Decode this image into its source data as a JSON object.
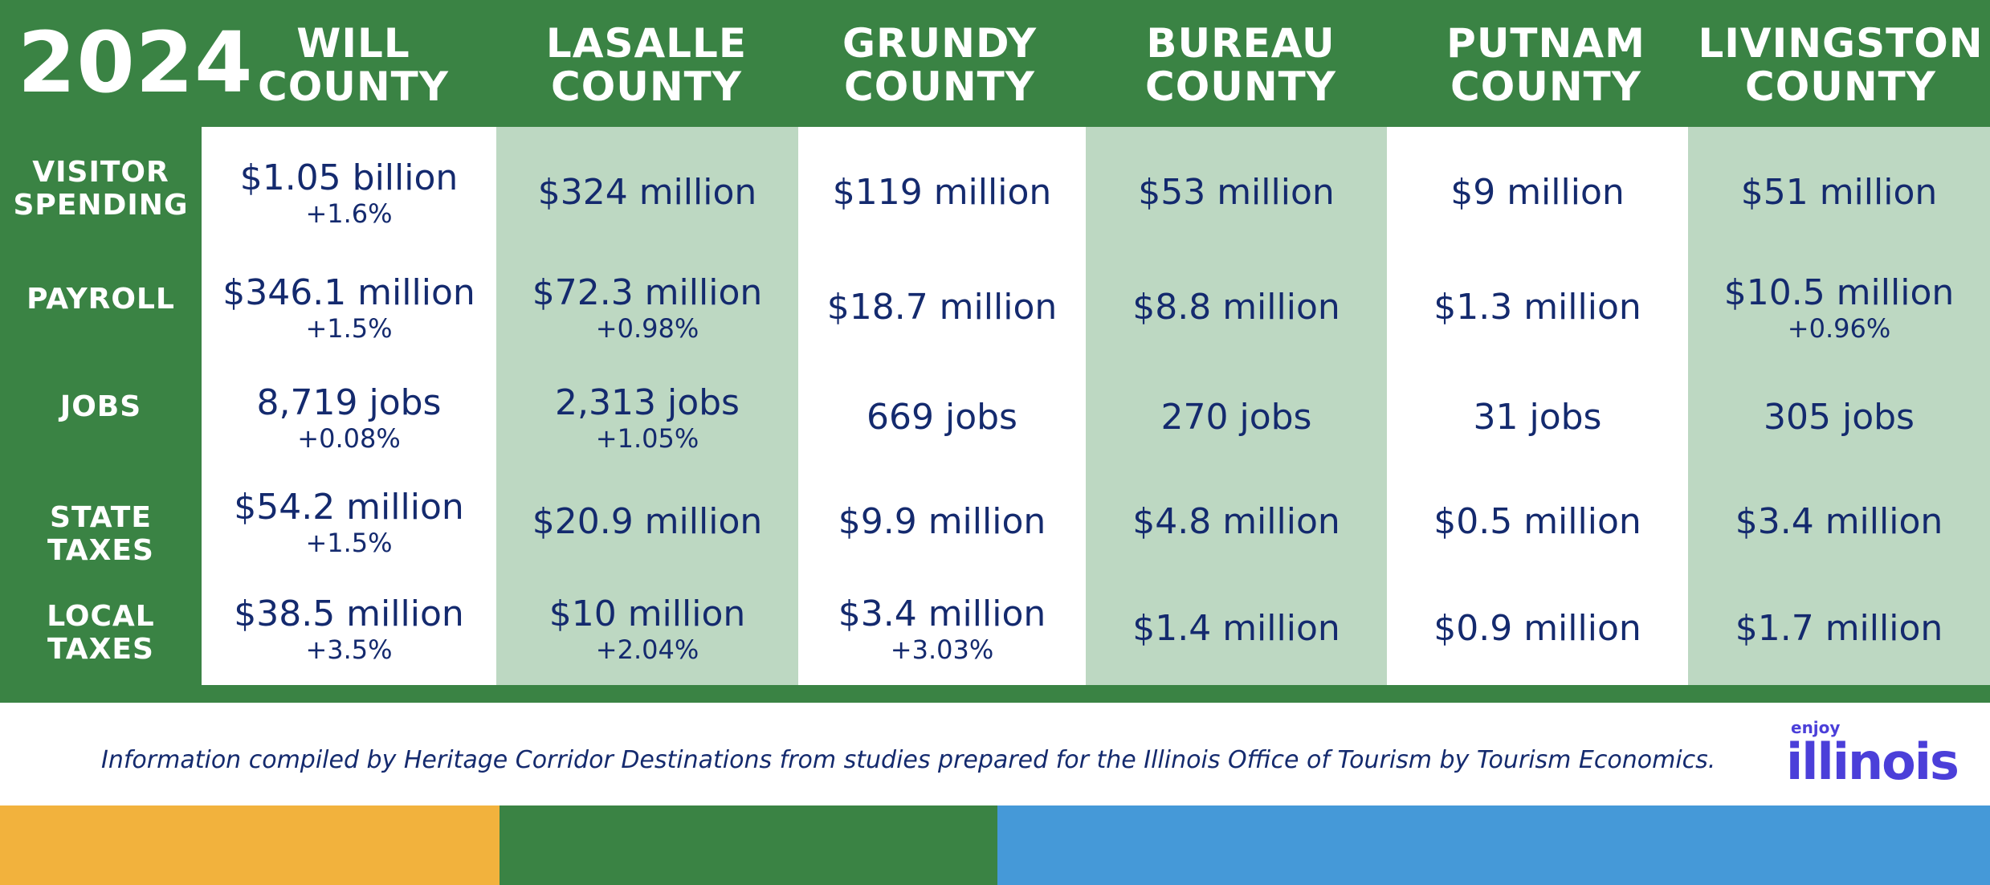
{
  "year": "2024",
  "counties": [
    {
      "line1": "WILL",
      "line2": "COUNTY"
    },
    {
      "line1": "LASALLE",
      "line2": "COUNTY"
    },
    {
      "line1": "GRUNDY",
      "line2": "COUNTY"
    },
    {
      "line1": "BUREAU",
      "line2": "COUNTY"
    },
    {
      "line1": "PUTNAM",
      "line2": "COUNTY"
    },
    {
      "line1": "LIVINGSTON",
      "line2": "COUNTY"
    }
  ],
  "rows": [
    {
      "line1": "VISITOR",
      "line2": "SPENDING"
    },
    {
      "line1": "PAYROLL",
      "line2": ""
    },
    {
      "line1": "JOBS",
      "line2": ""
    },
    {
      "line1": "STATE",
      "line2": "TAXES"
    },
    {
      "line1": "LOCAL",
      "line2": "TAXES"
    }
  ],
  "cells": [
    [
      {
        "value": "$1.05 billion",
        "change": "+1.6%"
      },
      {
        "value": "$346.1 million",
        "change": "+1.5%"
      },
      {
        "value": "8,719 jobs",
        "change": "+0.08%"
      },
      {
        "value": "$54.2 million",
        "change": "+1.5%"
      },
      {
        "value": "$38.5 million",
        "change": "+3.5%"
      }
    ],
    [
      {
        "value": "$324 million",
        "change": ""
      },
      {
        "value": "$72.3 million",
        "change": "+0.98%"
      },
      {
        "value": "2,313 jobs",
        "change": "+1.05%"
      },
      {
        "value": "$20.9 million",
        "change": ""
      },
      {
        "value": "$10 million",
        "change": "+2.04%"
      }
    ],
    [
      {
        "value": "$119 million",
        "change": ""
      },
      {
        "value": "$18.7 million",
        "change": ""
      },
      {
        "value": "669 jobs",
        "change": ""
      },
      {
        "value": "$9.9 million",
        "change": ""
      },
      {
        "value": "$3.4 million",
        "change": "+3.03%"
      }
    ],
    [
      {
        "value": "$53 million",
        "change": ""
      },
      {
        "value": "$8.8 million",
        "change": ""
      },
      {
        "value": "270 jobs",
        "change": ""
      },
      {
        "value": "$4.8 million",
        "change": ""
      },
      {
        "value": "$1.4 million",
        "change": ""
      }
    ],
    [
      {
        "value": "$9 million",
        "change": ""
      },
      {
        "value": "$1.3 million",
        "change": ""
      },
      {
        "value": "31 jobs",
        "change": ""
      },
      {
        "value": "$0.5 million",
        "change": ""
      },
      {
        "value": "$0.9 million",
        "change": ""
      }
    ],
    [
      {
        "value": "$51 million",
        "change": ""
      },
      {
        "value": "$10.5 million",
        "change": "+0.96%"
      },
      {
        "value": "305 jobs",
        "change": ""
      },
      {
        "value": "$3.4 million",
        "change": ""
      },
      {
        "value": "$1.7 million",
        "change": ""
      }
    ]
  ],
  "footnote": "Information compiled by Heritage Corridor Destinations from studies prepared for the Illinois Office of Tourism by Tourism Economics.",
  "logo": {
    "small": "enjoy",
    "brand": "illinois"
  },
  "colors": {
    "green": "#3a8344",
    "tint": "#bdd8c2",
    "navy": "#142a6e",
    "yellow": "#f2b23d",
    "blue": "#4599d8",
    "logo_purple": "#4b3fd9"
  }
}
